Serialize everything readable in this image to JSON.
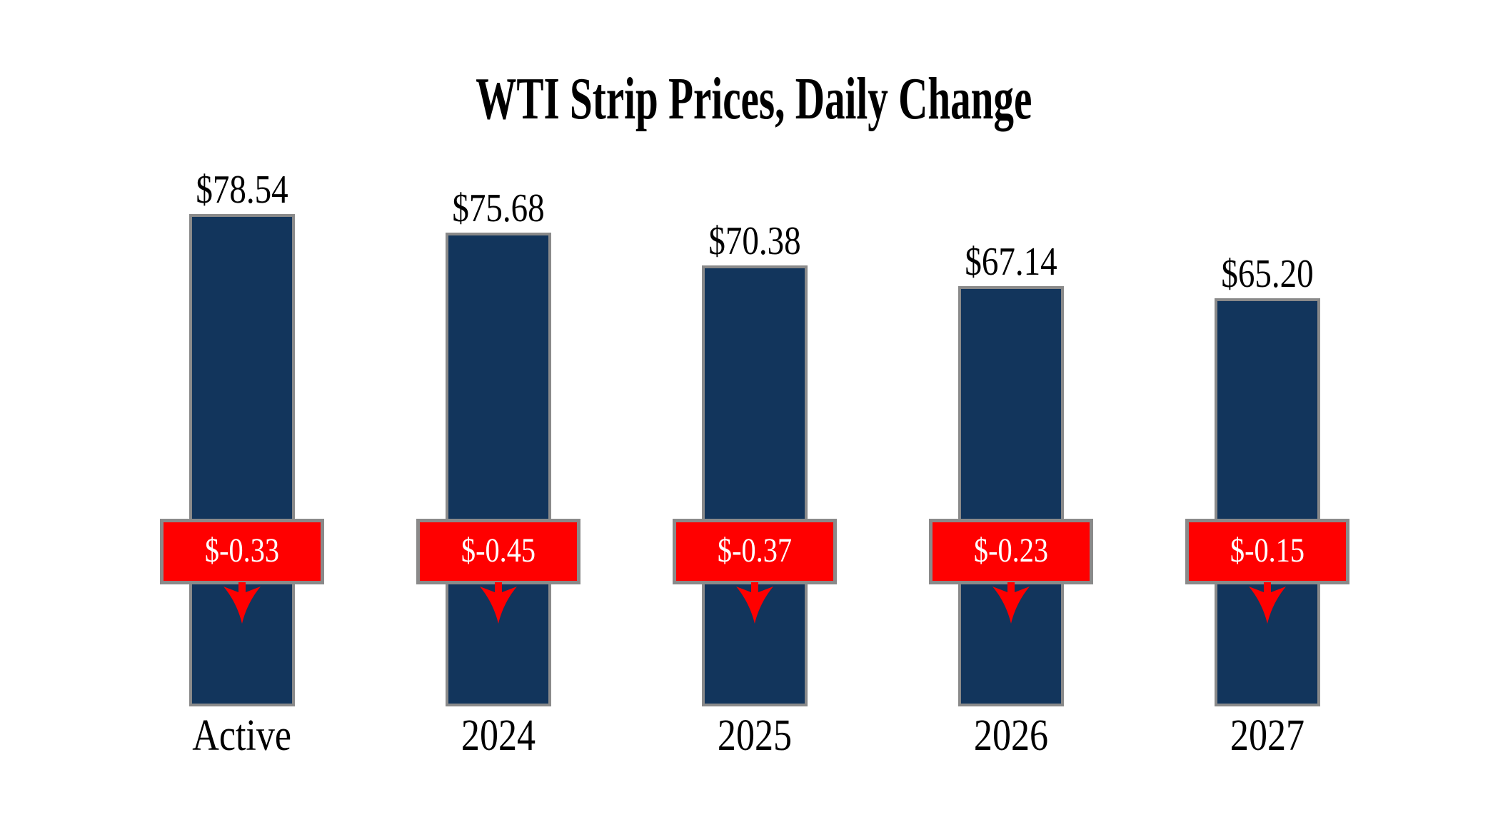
{
  "chart_data": {
    "type": "bar",
    "title": "WTI Strip Prices, Daily Change",
    "categories": [
      "Active",
      "2024",
      "2025",
      "2026",
      "2027"
    ],
    "series": [
      {
        "name": "WTI Strip Price",
        "values": [
          78.54,
          75.68,
          70.38,
          67.14,
          65.2
        ],
        "labels": [
          "$78.54",
          "$75.68",
          "$70.38",
          "$67.14",
          "$65.20"
        ],
        "label_position": "above-bar"
      },
      {
        "name": "Daily Change",
        "values": [
          -0.33,
          -0.45,
          -0.37,
          -0.23,
          -0.15
        ],
        "labels": [
          "$-0.33",
          "$-0.45",
          "$-0.37",
          "$-0.23",
          "$-0.15"
        ],
        "label_position": "badge-on-bar",
        "direction_icon": "down-arrow"
      }
    ],
    "xlabel": "",
    "ylabel": "",
    "ylim": [
      0,
      80
    ],
    "grid": false,
    "legend": "none",
    "axis_lines": "none",
    "colors": {
      "bar_fill": "#12355C",
      "bar_border": "#8A8A8A",
      "badge_fill": "#FF0000",
      "badge_border": "#8A8A8A",
      "badge_text": "#FFFFFF",
      "arrow": "#FF0000",
      "label_text": "#000000",
      "background": "#FFFFFF"
    }
  }
}
